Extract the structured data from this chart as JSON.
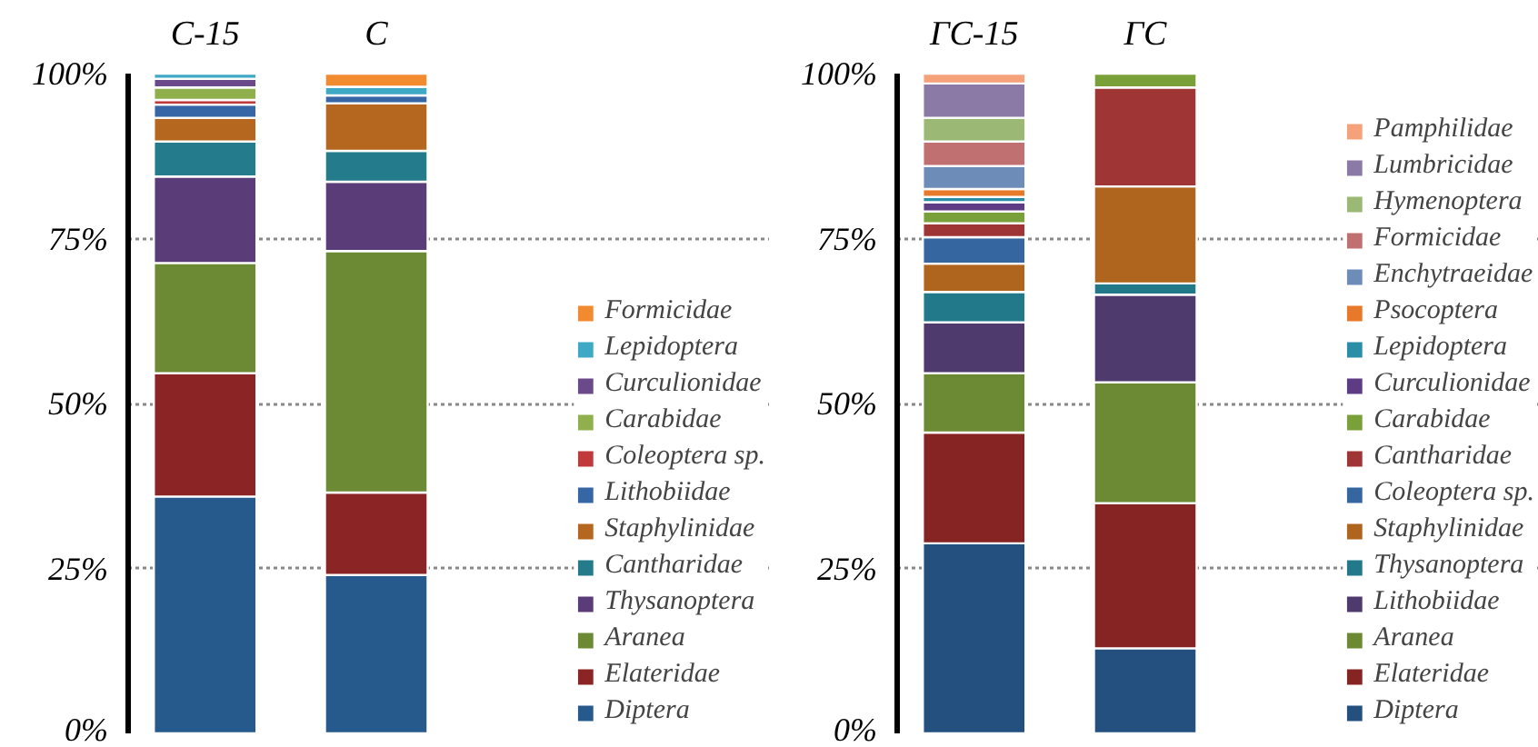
{
  "chart_data": [
    {
      "type": "bar",
      "stacked": true,
      "categories": [
        "С-15",
        "С"
      ],
      "ylim": [
        0,
        100
      ],
      "yticks": [
        {
          "value": 0,
          "label": "0%"
        },
        {
          "value": 25,
          "label": "25%"
        },
        {
          "value": 50,
          "label": "50%"
        },
        {
          "value": 75,
          "label": "75%"
        },
        {
          "value": 100,
          "label": "100%"
        }
      ],
      "grid": "y",
      "legend": "right",
      "series": [
        {
          "name": "Diptera",
          "color": "#265a8c",
          "values": [
            35.9,
            24.0
          ]
        },
        {
          "name": "Elateridae",
          "color": "#8b2525",
          "values": [
            18.7,
            12.5
          ]
        },
        {
          "name": "Aranea",
          "color": "#6b8a33",
          "values": [
            16.7,
            36.6
          ]
        },
        {
          "name": "Thysanoptera",
          "color": "#5a3d78",
          "values": [
            13.1,
            10.5
          ]
        },
        {
          "name": "Cantharidae",
          "color": "#237b8c",
          "values": [
            5.3,
            4.7
          ]
        },
        {
          "name": "Staphylinidae",
          "color": "#b5671f",
          "values": [
            3.6,
            7.2
          ]
        },
        {
          "name": "Lithobiidae",
          "color": "#3766a6",
          "values": [
            2.0,
            1.2
          ]
        },
        {
          "name": "Coleoptera sp.",
          "color": "#c0393b",
          "values": [
            0.7,
            0
          ]
        },
        {
          "name": "Carabidae",
          "color": "#8fb04c",
          "values": [
            1.9,
            0
          ]
        },
        {
          "name": "Curculionidae",
          "color": "#6b4a8c",
          "values": [
            1.3,
            0
          ]
        },
        {
          "name": "Lepidoptera",
          "color": "#3da9c4",
          "values": [
            0.8,
            1.3
          ]
        },
        {
          "name": "Formicidae",
          "color": "#f28a30",
          "values": [
            0,
            2.0
          ]
        }
      ]
    },
    {
      "type": "bar",
      "stacked": true,
      "categories": [
        "ГС-15",
        "ГС"
      ],
      "ylim": [
        0,
        100
      ],
      "yticks": [
        {
          "value": 0,
          "label": "0%"
        },
        {
          "value": 25,
          "label": "25%"
        },
        {
          "value": 50,
          "label": "50%"
        },
        {
          "value": 75,
          "label": "75%"
        },
        {
          "value": 100,
          "label": "100%"
        }
      ],
      "grid": "y",
      "legend": "right",
      "series": [
        {
          "name": "Diptera",
          "color": "#23507f",
          "values": [
            28.8,
            12.9
          ]
        },
        {
          "name": "Elateridae",
          "color": "#862424",
          "values": [
            16.8,
            22.0
          ]
        },
        {
          "name": "Aranea",
          "color": "#6b8a33",
          "values": [
            9.0,
            18.3
          ]
        },
        {
          "name": "Lithobiidae",
          "color": "#4f3a6e",
          "values": [
            7.7,
            13.3
          ]
        },
        {
          "name": "Thysanoptera",
          "color": "#21798a",
          "values": [
            4.6,
            1.7
          ]
        },
        {
          "name": "Staphylinidae",
          "color": "#b0651f",
          "values": [
            4.3,
            14.7
          ]
        },
        {
          "name": "Coleoptera sp.",
          "color": "#3566a0",
          "values": [
            4.0,
            0
          ]
        },
        {
          "name": "Cantharidae",
          "color": "#a03535",
          "values": [
            2.1,
            15.0
          ]
        },
        {
          "name": "Carabidae",
          "color": "#7aa03a",
          "values": [
            1.8,
            2.1
          ]
        },
        {
          "name": "Curculionidae",
          "color": "#5e3c85",
          "values": [
            1.4,
            0
          ]
        },
        {
          "name": "Lepidoptera",
          "color": "#2b8ea8",
          "values": [
            0.8,
            0
          ]
        },
        {
          "name": "Psocoptera",
          "color": "#e8792a",
          "values": [
            1.2,
            0
          ]
        },
        {
          "name": "Enchytraeidae",
          "color": "#6e8cb8",
          "values": [
            3.5,
            0
          ]
        },
        {
          "name": "Formicidae",
          "color": "#c07070",
          "values": [
            3.7,
            0
          ]
        },
        {
          "name": "Hymenoptera",
          "color": "#9bb874",
          "values": [
            3.6,
            0
          ]
        },
        {
          "name": "Lumbricidae",
          "color": "#8b7aa5",
          "values": [
            5.2,
            0
          ]
        },
        {
          "name": "Pamphilidae",
          "color": "#f5a27a",
          "values": [
            1.5,
            0
          ]
        }
      ]
    }
  ]
}
